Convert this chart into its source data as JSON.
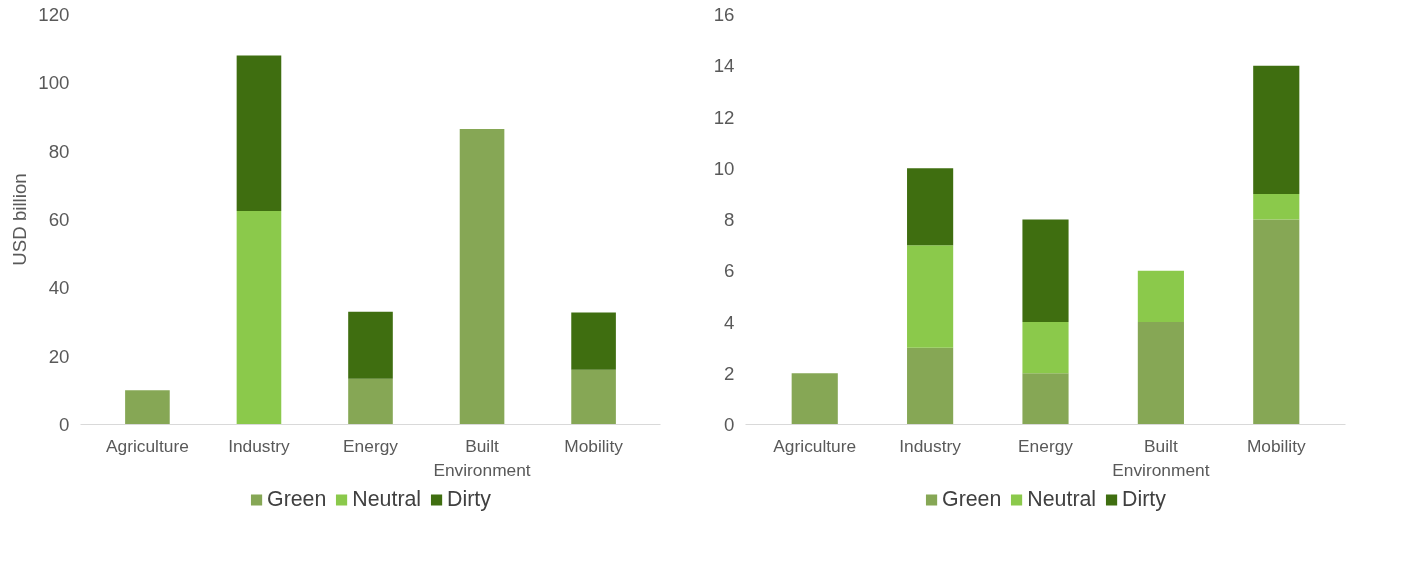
{
  "chart_data": [
    {
      "type": "bar",
      "stacked": true,
      "ylabel": "USD billion",
      "categories": [
        "Agriculture",
        "Industry",
        "Energy",
        "Built Environment",
        "Mobility"
      ],
      "series": [
        {
          "name": "Green",
          "color": "#86a755",
          "values": [
            10,
            0,
            13.4,
            86.5,
            16
          ]
        },
        {
          "name": "Neutral",
          "color": "#8bc94b",
          "values": [
            0,
            62.5,
            0,
            0,
            0
          ]
        },
        {
          "name": "Dirty",
          "color": "#3f6e10",
          "values": [
            0,
            45.5,
            19.6,
            0,
            16.8
          ]
        }
      ],
      "ylim": [
        0,
        120
      ],
      "yticks": [
        0,
        20,
        40,
        60,
        80,
        100,
        120
      ],
      "grid": false,
      "legend": "bottom"
    },
    {
      "type": "bar",
      "stacked": true,
      "categories": [
        "Agriculture",
        "Industry",
        "Energy",
        "Built Environment",
        "Mobility"
      ],
      "series": [
        {
          "name": "Green",
          "color": "#86a755",
          "values": [
            2,
            3,
            2,
            4,
            8
          ]
        },
        {
          "name": "Neutral",
          "color": "#8bc94b",
          "values": [
            0,
            4,
            2,
            2,
            1
          ]
        },
        {
          "name": "Dirty",
          "color": "#3f6e10",
          "values": [
            0,
            3,
            4,
            0,
            5
          ]
        }
      ],
      "ylim": [
        0,
        16
      ],
      "yticks": [
        0,
        2,
        4,
        6,
        8,
        10,
        12,
        14,
        16
      ],
      "grid": false,
      "legend": "bottom"
    }
  ]
}
